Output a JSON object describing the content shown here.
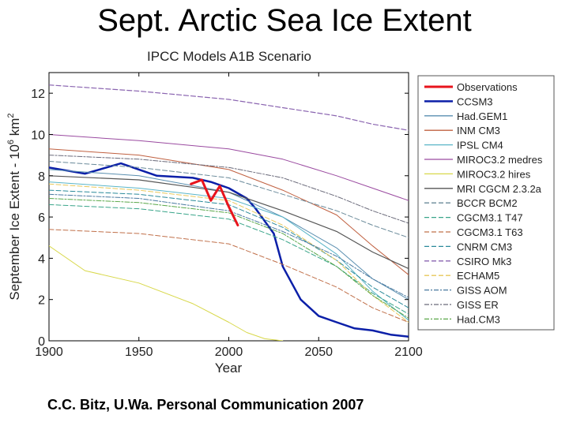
{
  "slide": {
    "title": "Sept. Arctic Sea Ice Extent",
    "credit": "C.C. Bitz, U.Wa.  Personal Communication 2007"
  },
  "chart_data": {
    "type": "line",
    "title": "IPCC Models A1B Scenario",
    "xlabel": "Year",
    "ylabel_main": "September Ice Extent - 10",
    "ylabel_sup": "6",
    "ylabel_unit": " km",
    "ylabel_unit_sup": "2",
    "xlim": [
      1900,
      2100
    ],
    "ylim": [
      0,
      13
    ],
    "xticks": [
      1900,
      1950,
      2000,
      2050,
      2100
    ],
    "yticks": [
      0,
      2,
      4,
      6,
      8,
      10,
      12
    ],
    "grid": false,
    "legend_position": "right",
    "series": [
      {
        "name": "Observations",
        "color": "#e8141c",
        "dash": "solid",
        "width": 3,
        "x": [
          1979,
          1985,
          1990,
          1995,
          2000,
          2005
        ],
        "y": [
          7.6,
          7.8,
          6.8,
          7.5,
          6.5,
          5.6
        ]
      },
      {
        "name": "CCSM3",
        "color": "#0b1fa8",
        "dash": "solid",
        "width": 2.5,
        "x": [
          1900,
          1920,
          1940,
          1960,
          1980,
          1990,
          2000,
          2010,
          2015,
          2020,
          2025,
          2030,
          2040,
          2050,
          2060,
          2070,
          2080,
          2090,
          2100
        ],
        "y": [
          8.4,
          8.1,
          8.6,
          8.0,
          7.9,
          7.7,
          7.4,
          6.9,
          6.4,
          5.8,
          5.2,
          3.6,
          2.0,
          1.2,
          0.9,
          0.6,
          0.5,
          0.3,
          0.2
        ]
      },
      {
        "name": "Had.GEM1",
        "color": "#5a8fb0",
        "dash": "solid",
        "width": 1,
        "x": [
          1900,
          1950,
          2000,
          2030,
          2060,
          2080,
          2100
        ],
        "y": [
          8.3,
          8.0,
          7.2,
          6.0,
          4.5,
          3.0,
          2.0
        ]
      },
      {
        "name": "INM CM3",
        "color": "#c06040",
        "dash": "solid",
        "width": 1,
        "x": [
          1900,
          1950,
          2000,
          2030,
          2060,
          2080,
          2100
        ],
        "y": [
          9.3,
          9.0,
          8.3,
          7.3,
          6.1,
          4.6,
          3.2
        ]
      },
      {
        "name": "IPSL CM4",
        "color": "#5ab5c8",
        "dash": "solid",
        "width": 1,
        "x": [
          1900,
          1950,
          2000,
          2030,
          2060,
          2080,
          2100
        ],
        "y": [
          7.7,
          7.4,
          6.9,
          6.0,
          4.2,
          2.4,
          1.0
        ]
      },
      {
        "name": "MIROC3.2 medres",
        "color": "#9a4aa0",
        "dash": "solid",
        "width": 1,
        "x": [
          1900,
          1950,
          2000,
          2030,
          2060,
          2080,
          2100
        ],
        "y": [
          10.0,
          9.7,
          9.3,
          8.8,
          8.0,
          7.4,
          6.8
        ]
      },
      {
        "name": "MIROC3.2 hires",
        "color": "#d8d84a",
        "dash": "solid",
        "width": 1,
        "x": [
          1900,
          1920,
          1950,
          1980,
          2000,
          2010,
          2020,
          2030
        ],
        "y": [
          4.6,
          3.4,
          2.8,
          1.8,
          0.9,
          0.4,
          0.1,
          0.0
        ]
      },
      {
        "name": "MRI CGCM 2.3.2a",
        "color": "#555555",
        "dash": "solid",
        "width": 1.2,
        "x": [
          1900,
          1950,
          2000,
          2030,
          2060,
          2080,
          2100
        ],
        "y": [
          8.0,
          7.8,
          7.2,
          6.3,
          5.3,
          4.3,
          3.5
        ]
      },
      {
        "name": "BCCR BCM2",
        "color": "#6a8a9a",
        "dash": "6,3",
        "width": 1,
        "x": [
          1900,
          1950,
          2000,
          2030,
          2060,
          2080,
          2100
        ],
        "y": [
          8.7,
          8.4,
          7.9,
          7.1,
          6.3,
          5.6,
          5.0
        ]
      },
      {
        "name": "CGCM3.1 T47",
        "color": "#3aa58a",
        "dash": "6,3",
        "width": 1,
        "x": [
          1900,
          1950,
          2000,
          2030,
          2060,
          2080,
          2100
        ],
        "y": [
          6.6,
          6.4,
          5.9,
          4.9,
          3.6,
          2.3,
          1.3
        ]
      },
      {
        "name": "CGCM3.1 T63",
        "color": "#c0704a",
        "dash": "6,3",
        "width": 1,
        "x": [
          1900,
          1950,
          2000,
          2030,
          2060,
          2080,
          2100
        ],
        "y": [
          5.4,
          5.2,
          4.7,
          3.7,
          2.6,
          1.6,
          0.9
        ]
      },
      {
        "name": "CNRM CM3",
        "color": "#2a8a9a",
        "dash": "6,3",
        "width": 1,
        "x": [
          1900,
          1950,
          2000,
          2030,
          2060,
          2080,
          2100
        ],
        "y": [
          7.3,
          7.1,
          6.6,
          5.5,
          3.9,
          2.6,
          1.6
        ]
      },
      {
        "name": "CSIRO Mk3",
        "color": "#8a64b0",
        "dash": "6,3",
        "width": 1.2,
        "x": [
          1900,
          1950,
          2000,
          2030,
          2060,
          2080,
          2100
        ],
        "y": [
          12.4,
          12.1,
          11.7,
          11.3,
          10.9,
          10.5,
          10.2
        ]
      },
      {
        "name": "ECHAM5",
        "color": "#e8c85a",
        "dash": "6,3",
        "width": 1,
        "x": [
          1900,
          1950,
          2000,
          2030,
          2060,
          2080,
          2100
        ],
        "y": [
          7.6,
          7.3,
          6.8,
          5.6,
          3.9,
          2.2,
          0.9
        ]
      },
      {
        "name": "GISS AOM",
        "color": "#4a7aa0",
        "dash": "6,2,2,2",
        "width": 1,
        "x": [
          1900,
          1950,
          2000,
          2030,
          2060,
          2080,
          2100
        ],
        "y": [
          7.1,
          6.9,
          6.3,
          5.3,
          4.1,
          3.0,
          2.1
        ]
      },
      {
        "name": "GISS ER",
        "color": "#6a6a7a",
        "dash": "6,2,2,2",
        "width": 1,
        "x": [
          1900,
          1950,
          2000,
          2030,
          2060,
          2080,
          2100
        ],
        "y": [
          9.0,
          8.8,
          8.4,
          7.9,
          7.0,
          6.3,
          5.7
        ]
      },
      {
        "name": "Had.CM3",
        "color": "#5aa84a",
        "dash": "6,2,2,2",
        "width": 1,
        "x": [
          1900,
          1950,
          2000,
          2030,
          2060,
          2080,
          2100
        ],
        "y": [
          6.9,
          6.7,
          6.2,
          5.2,
          3.6,
          2.2,
          1.1
        ]
      }
    ]
  }
}
